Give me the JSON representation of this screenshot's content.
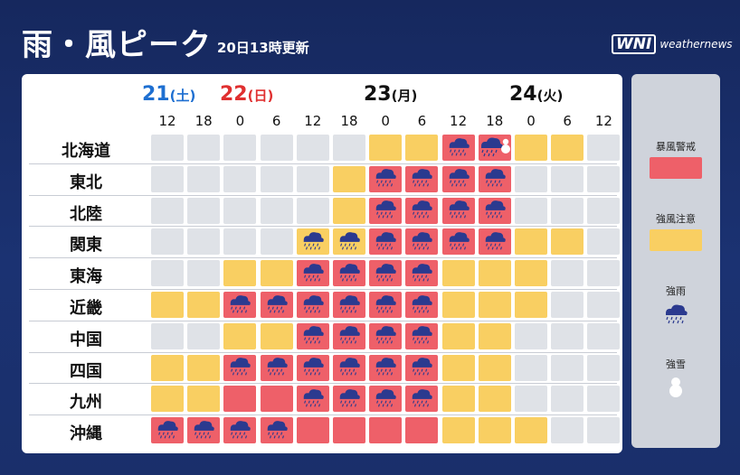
{
  "header": {
    "title": "雨・風ピーク",
    "update_time": "20日13時更新"
  },
  "logo": {
    "mark": "WNI",
    "word": "weathernews"
  },
  "dates": [
    {
      "num": "21",
      "dow": "(土)",
      "style": "sat"
    },
    {
      "num": "22",
      "dow": "(日)",
      "style": "sun"
    },
    {
      "num": "23",
      "dow": "(月)",
      "style": "wk"
    },
    {
      "num": "24",
      "dow": "(火)",
      "style": "wk"
    }
  ],
  "hours": [
    "12",
    "18",
    "0",
    "6",
    "12",
    "18",
    "0",
    "6",
    "12",
    "18",
    "0",
    "6",
    "12"
  ],
  "regions": [
    {
      "name": "北海道",
      "cells": [
        "n",
        "n",
        "n",
        "n",
        "n",
        "n",
        "y",
        "y",
        "rR",
        "rRS",
        "y",
        "y",
        "n"
      ]
    },
    {
      "name": "東北",
      "cells": [
        "n",
        "n",
        "n",
        "n",
        "n",
        "y",
        "rR",
        "rR",
        "rR",
        "rR",
        "n",
        "n",
        "n"
      ]
    },
    {
      "name": "北陸",
      "cells": [
        "n",
        "n",
        "n",
        "n",
        "n",
        "y",
        "rR",
        "rR",
        "rR",
        "rR",
        "n",
        "n",
        "n"
      ]
    },
    {
      "name": "関東",
      "cells": [
        "n",
        "n",
        "n",
        "n",
        "yR",
        "yR",
        "rR",
        "rR",
        "rR",
        "rR",
        "y",
        "y",
        "n"
      ]
    },
    {
      "name": "東海",
      "cells": [
        "n",
        "n",
        "y",
        "y",
        "rR",
        "rR",
        "rR",
        "rR",
        "y",
        "y",
        "y",
        "n",
        "n"
      ]
    },
    {
      "name": "近畿",
      "cells": [
        "y",
        "y",
        "rR",
        "rR",
        "rR",
        "rR",
        "rR",
        "rR",
        "y",
        "y",
        "y",
        "n",
        "n"
      ]
    },
    {
      "name": "中国",
      "cells": [
        "n",
        "n",
        "y",
        "y",
        "rR",
        "rR",
        "rR",
        "rR",
        "y",
        "y",
        "n",
        "n",
        "n"
      ]
    },
    {
      "name": "四国",
      "cells": [
        "y",
        "y",
        "rR",
        "rR",
        "rR",
        "rR",
        "rR",
        "rR",
        "y",
        "y",
        "n",
        "n",
        "n"
      ]
    },
    {
      "name": "九州",
      "cells": [
        "y",
        "y",
        "r",
        "r",
        "rR",
        "rR",
        "rR",
        "rR",
        "y",
        "y",
        "n",
        "n",
        "n"
      ]
    },
    {
      "name": "沖縄",
      "cells": [
        "rR",
        "rR",
        "rR",
        "rR",
        "r",
        "r",
        "r",
        "r",
        "y",
        "y",
        "y",
        "n",
        "n"
      ]
    }
  ],
  "legend": {
    "storm_warning": "暴風警戒",
    "gale_advisory": "強風注意",
    "heavy_rain": "強雨",
    "heavy_snow": "強雪"
  },
  "colors": {
    "storm_warning": "#ee6069",
    "gale_advisory": "#f9cf62",
    "none": "#dfe2e7",
    "background": "#1b3272",
    "rain_icon": "#2b3a8f"
  }
}
